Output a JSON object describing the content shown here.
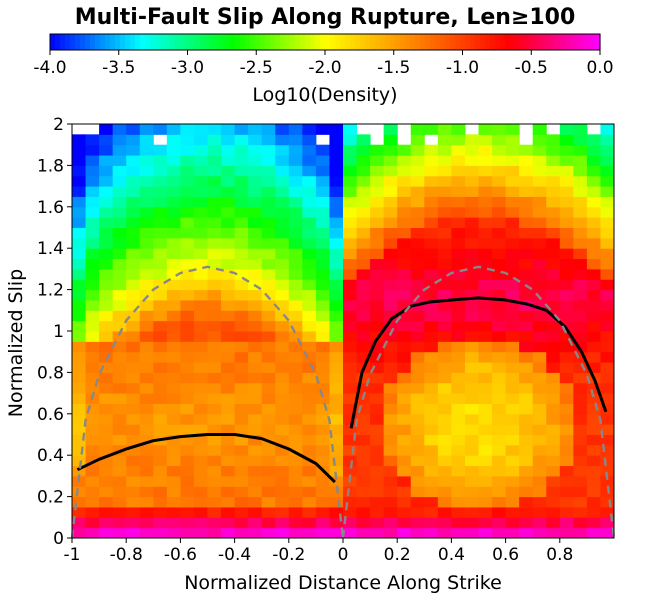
{
  "chart_data": {
    "type": "heatmap",
    "title": "Multi-Fault Slip Along Rupture, Len≥100",
    "xlabel": "Normalized Distance Along Strike",
    "ylabel": "Normalized Slip",
    "colorbar_label": "Log10(Density)",
    "colorbar_range": [
      -4.0,
      0.0
    ],
    "colorbar_ticks": [
      "-4.0",
      "-3.5",
      "-3.0",
      "-2.5",
      "-2.0",
      "-1.5",
      "-1.0",
      "-0.5",
      "0.0"
    ],
    "xlim": [
      -1,
      1
    ],
    "ylim": [
      0,
      2
    ],
    "x_ticks": [
      "-1",
      "-0.8",
      "-0.6",
      "-0.4",
      "-0.2",
      "0",
      "0.2",
      "0.4",
      "0.6",
      "0.8"
    ],
    "y_ticks": [
      "0",
      "0.2",
      "0.4",
      "0.6",
      "0.8",
      "1",
      "1.2",
      "1.4",
      "1.6",
      "1.8",
      "2"
    ],
    "grid": false,
    "colormap": [
      "#0000ff",
      "#00ffff",
      "#00ff00",
      "#ffff00",
      "#ff8000",
      "#ff0000",
      "#ff00ff"
    ],
    "series": [
      {
        "style": "solid-black",
        "x": [
          -0.98,
          -0.9,
          -0.8,
          -0.7,
          -0.6,
          -0.5,
          -0.4,
          -0.3,
          -0.2,
          -0.1,
          -0.03
        ],
        "y": [
          0.33,
          0.38,
          0.43,
          0.47,
          0.49,
          0.5,
          0.5,
          0.48,
          0.43,
          0.36,
          0.27
        ]
      },
      {
        "style": "solid-black",
        "x": [
          0.03,
          0.07,
          0.12,
          0.18,
          0.25,
          0.32,
          0.4,
          0.5,
          0.6,
          0.68,
          0.75,
          0.82,
          0.88,
          0.93,
          0.97
        ],
        "y": [
          0.53,
          0.8,
          0.95,
          1.06,
          1.12,
          1.14,
          1.15,
          1.16,
          1.15,
          1.13,
          1.1,
          1.02,
          0.9,
          0.76,
          0.61
        ]
      },
      {
        "style": "dashed-gray",
        "x": [
          -1,
          -0.95,
          -0.9,
          -0.8,
          -0.7,
          -0.6,
          -0.5,
          -0.4,
          -0.3,
          -0.2,
          -0.1,
          -0.05,
          0
        ],
        "y": [
          0,
          0.57,
          0.79,
          1.05,
          1.2,
          1.28,
          1.31,
          1.28,
          1.2,
          1.05,
          0.79,
          0.57,
          0
        ]
      },
      {
        "style": "dashed-gray",
        "x": [
          0,
          0.05,
          0.1,
          0.2,
          0.3,
          0.4,
          0.5,
          0.6,
          0.7,
          0.8,
          0.9,
          0.95,
          1
        ],
        "y": [
          0,
          0.57,
          0.79,
          1.05,
          1.2,
          1.28,
          1.31,
          1.28,
          1.2,
          1.05,
          0.79,
          0.57,
          0
        ]
      }
    ]
  }
}
